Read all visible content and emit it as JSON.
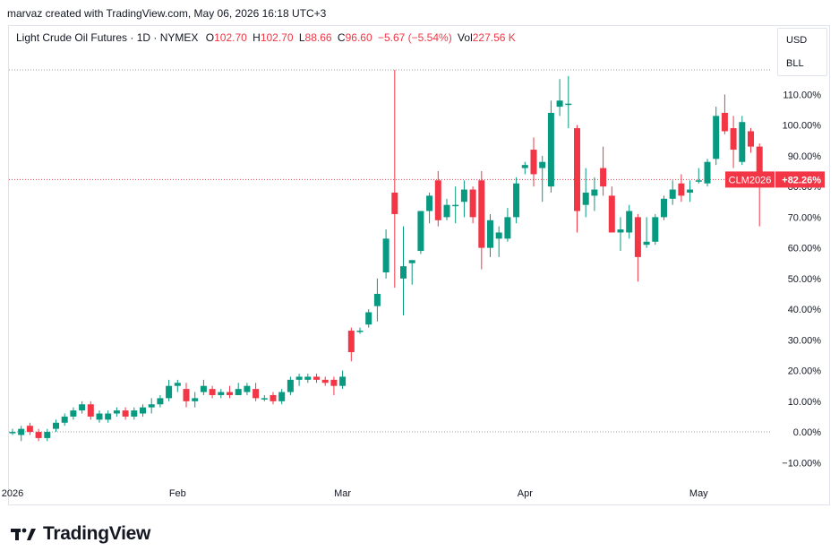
{
  "header": {
    "caption": "marvaz created with TradingView.com, May 06, 2026 16:18 UTC+3"
  },
  "legend": {
    "instrument": "Light Crude Oil Futures · 1D · NYMEX",
    "o_label": "O",
    "o_value": "102.70",
    "h_label": "H",
    "h_value": "102.70",
    "l_label": "L",
    "l_value": "88.66",
    "c_label": "C",
    "c_value": "96.60",
    "change": "−5.67 (−5.54%)",
    "vol_label": "Vol",
    "vol_value": "227.56 K"
  },
  "units": {
    "currency": "USD",
    "unit": "BLL"
  },
  "price_tag": {
    "symbol": "CLM2026",
    "value": "+82.26%"
  },
  "brand": {
    "name": "TradingView"
  },
  "colors": {
    "up": "#089981",
    "down": "#f23645",
    "grid": "#e0e3eb",
    "text": "#131722"
  },
  "chart_data": {
    "type": "candlestick",
    "y_unit": "percent change",
    "ylim": [
      -14,
      118
    ],
    "y_ticks": [
      "110.00%",
      "100.00%",
      "90.00%",
      "80.00%",
      "70.00%",
      "60.00%",
      "50.00%",
      "40.00%",
      "30.00%",
      "20.00%",
      "10.00%",
      "0.00%",
      "−10.00%"
    ],
    "y_tick_values": [
      110,
      100,
      90,
      80,
      70,
      60,
      50,
      40,
      30,
      20,
      10,
      0,
      -10
    ],
    "x_labels": [
      {
        "label": "2026",
        "index": 0
      },
      {
        "label": "Feb",
        "index": 19
      },
      {
        "label": "Mar",
        "index": 38
      },
      {
        "label": "Apr",
        "index": 59
      },
      {
        "label": "May",
        "index": 79
      }
    ],
    "last_value": 82.26,
    "baseline": 0,
    "grid": false,
    "candles": [
      {
        "o": 0,
        "h": 1,
        "l": -1,
        "c": 0
      },
      {
        "o": -1,
        "h": 2,
        "l": -3,
        "c": 1
      },
      {
        "o": 2,
        "h": 3,
        "l": -1,
        "c": 0
      },
      {
        "o": 0,
        "h": 1,
        "l": -3,
        "c": -2
      },
      {
        "o": -2,
        "h": 1,
        "l": -3,
        "c": 0
      },
      {
        "o": 1,
        "h": 4,
        "l": 0,
        "c": 3
      },
      {
        "o": 3,
        "h": 6,
        "l": 2,
        "c": 5
      },
      {
        "o": 5,
        "h": 8,
        "l": 4,
        "c": 7
      },
      {
        "o": 7,
        "h": 10,
        "l": 6,
        "c": 9
      },
      {
        "o": 9,
        "h": 10,
        "l": 4,
        "c": 5
      },
      {
        "o": 4,
        "h": 7,
        "l": 3,
        "c": 6
      },
      {
        "o": 4,
        "h": 7,
        "l": 3,
        "c": 6
      },
      {
        "o": 6,
        "h": 8,
        "l": 5,
        "c": 7
      },
      {
        "o": 7,
        "h": 8,
        "l": 4,
        "c": 5
      },
      {
        "o": 5,
        "h": 8,
        "l": 4,
        "c": 7
      },
      {
        "o": 6,
        "h": 9,
        "l": 5,
        "c": 8
      },
      {
        "o": 8,
        "h": 11,
        "l": 6,
        "c": 9
      },
      {
        "o": 9,
        "h": 12,
        "l": 8,
        "c": 11
      },
      {
        "o": 11,
        "h": 17,
        "l": 10,
        "c": 15
      },
      {
        "o": 15,
        "h": 17,
        "l": 13,
        "c": 16
      },
      {
        "o": 14,
        "h": 16,
        "l": 8,
        "c": 10
      },
      {
        "o": 10,
        "h": 13,
        "l": 8,
        "c": 11
      },
      {
        "o": 13,
        "h": 17,
        "l": 12,
        "c": 15
      },
      {
        "o": 14,
        "h": 15,
        "l": 11,
        "c": 12
      },
      {
        "o": 12,
        "h": 14,
        "l": 11,
        "c": 13
      },
      {
        "o": 13,
        "h": 15,
        "l": 11,
        "c": 12
      },
      {
        "o": 12,
        "h": 16,
        "l": 12,
        "c": 14
      },
      {
        "o": 13,
        "h": 16,
        "l": 12,
        "c": 15
      },
      {
        "o": 14,
        "h": 16,
        "l": 10,
        "c": 11
      },
      {
        "o": 11,
        "h": 12,
        "l": 10,
        "c": 11
      },
      {
        "o": 12,
        "h": 13,
        "l": 9,
        "c": 10
      },
      {
        "o": 10,
        "h": 14,
        "l": 9,
        "c": 13
      },
      {
        "o": 13,
        "h": 18,
        "l": 12,
        "c": 17
      },
      {
        "o": 17,
        "h": 19,
        "l": 15,
        "c": 18
      },
      {
        "o": 17,
        "h": 19,
        "l": 16,
        "c": 18
      },
      {
        "o": 18,
        "h": 19,
        "l": 16,
        "c": 17
      },
      {
        "o": 17,
        "h": 18,
        "l": 15,
        "c": 16
      },
      {
        "o": 17,
        "h": 18,
        "l": 12,
        "c": 15
      },
      {
        "o": 15,
        "h": 20,
        "l": 14,
        "c": 18
      },
      {
        "o": 33,
        "h": 34,
        "l": 23,
        "c": 26
      },
      {
        "o": 33,
        "h": 34,
        "l": 32,
        "c": 33
      },
      {
        "o": 35,
        "h": 40,
        "l": 34,
        "c": 39
      },
      {
        "o": 41,
        "h": 50,
        "l": 36,
        "c": 45
      },
      {
        "o": 52,
        "h": 66,
        "l": 50,
        "c": 63
      },
      {
        "o": 78,
        "h": 118,
        "l": 47,
        "c": 71
      },
      {
        "o": 50,
        "h": 67,
        "l": 38,
        "c": 54
      },
      {
        "o": 55,
        "h": 56,
        "l": 48,
        "c": 56
      },
      {
        "o": 59,
        "h": 72,
        "l": 58,
        "c": 72
      },
      {
        "o": 72,
        "h": 78,
        "l": 68,
        "c": 77
      },
      {
        "o": 82,
        "h": 85,
        "l": 67,
        "c": 69
      },
      {
        "o": 70,
        "h": 76,
        "l": 69,
        "c": 74
      },
      {
        "o": 74,
        "h": 80,
        "l": 68,
        "c": 74
      },
      {
        "o": 75,
        "h": 82,
        "l": 70,
        "c": 79
      },
      {
        "o": 79,
        "h": 80,
        "l": 68,
        "c": 70
      },
      {
        "o": 82,
        "h": 85,
        "l": 53,
        "c": 60
      },
      {
        "o": 60,
        "h": 71,
        "l": 57,
        "c": 69
      },
      {
        "o": 63,
        "h": 67,
        "l": 57,
        "c": 65
      },
      {
        "o": 63,
        "h": 73,
        "l": 62,
        "c": 70
      },
      {
        "o": 70,
        "h": 83,
        "l": 68,
        "c": 81
      },
      {
        "o": 86,
        "h": 88,
        "l": 84,
        "c": 87
      },
      {
        "o": 92,
        "h": 96,
        "l": 80,
        "c": 84
      },
      {
        "o": 86,
        "h": 90,
        "l": 75,
        "c": 88
      },
      {
        "o": 80,
        "h": 108,
        "l": 78,
        "c": 104
      },
      {
        "o": 106,
        "h": 115,
        "l": 103,
        "c": 108
      },
      {
        "o": 107,
        "h": 116,
        "l": 99,
        "c": 107
      },
      {
        "o": 99,
        "h": 100,
        "l": 65,
        "c": 72
      },
      {
        "o": 74,
        "h": 86,
        "l": 70,
        "c": 78
      },
      {
        "o": 77,
        "h": 83,
        "l": 72,
        "c": 79
      },
      {
        "o": 86,
        "h": 93,
        "l": 77,
        "c": 80
      },
      {
        "o": 77,
        "h": 80,
        "l": 65,
        "c": 65
      },
      {
        "o": 65,
        "h": 70,
        "l": 59,
        "c": 66
      },
      {
        "o": 65,
        "h": 74,
        "l": 63,
        "c": 72
      },
      {
        "o": 70,
        "h": 71,
        "l": 49,
        "c": 57
      },
      {
        "o": 61,
        "h": 70,
        "l": 60,
        "c": 62
      },
      {
        "o": 62,
        "h": 71,
        "l": 61,
        "c": 70
      },
      {
        "o": 70,
        "h": 77,
        "l": 69,
        "c": 76
      },
      {
        "o": 76,
        "h": 82,
        "l": 74,
        "c": 79
      },
      {
        "o": 81,
        "h": 84,
        "l": 75,
        "c": 77
      },
      {
        "o": 78,
        "h": 82,
        "l": 75,
        "c": 79
      },
      {
        "o": 82,
        "h": 86,
        "l": 81,
        "c": 82
      },
      {
        "o": 81,
        "h": 89,
        "l": 80,
        "c": 88
      },
      {
        "o": 89,
        "h": 106,
        "l": 87,
        "c": 103
      },
      {
        "o": 104,
        "h": 110,
        "l": 97,
        "c": 98
      },
      {
        "o": 99,
        "h": 103,
        "l": 86,
        "c": 92
      },
      {
        "o": 88,
        "h": 103,
        "l": 87,
        "c": 101
      },
      {
        "o": 98,
        "h": 99,
        "l": 91,
        "c": 93
      },
      {
        "o": 93,
        "h": 94,
        "l": 67,
        "c": 82
      }
    ]
  }
}
